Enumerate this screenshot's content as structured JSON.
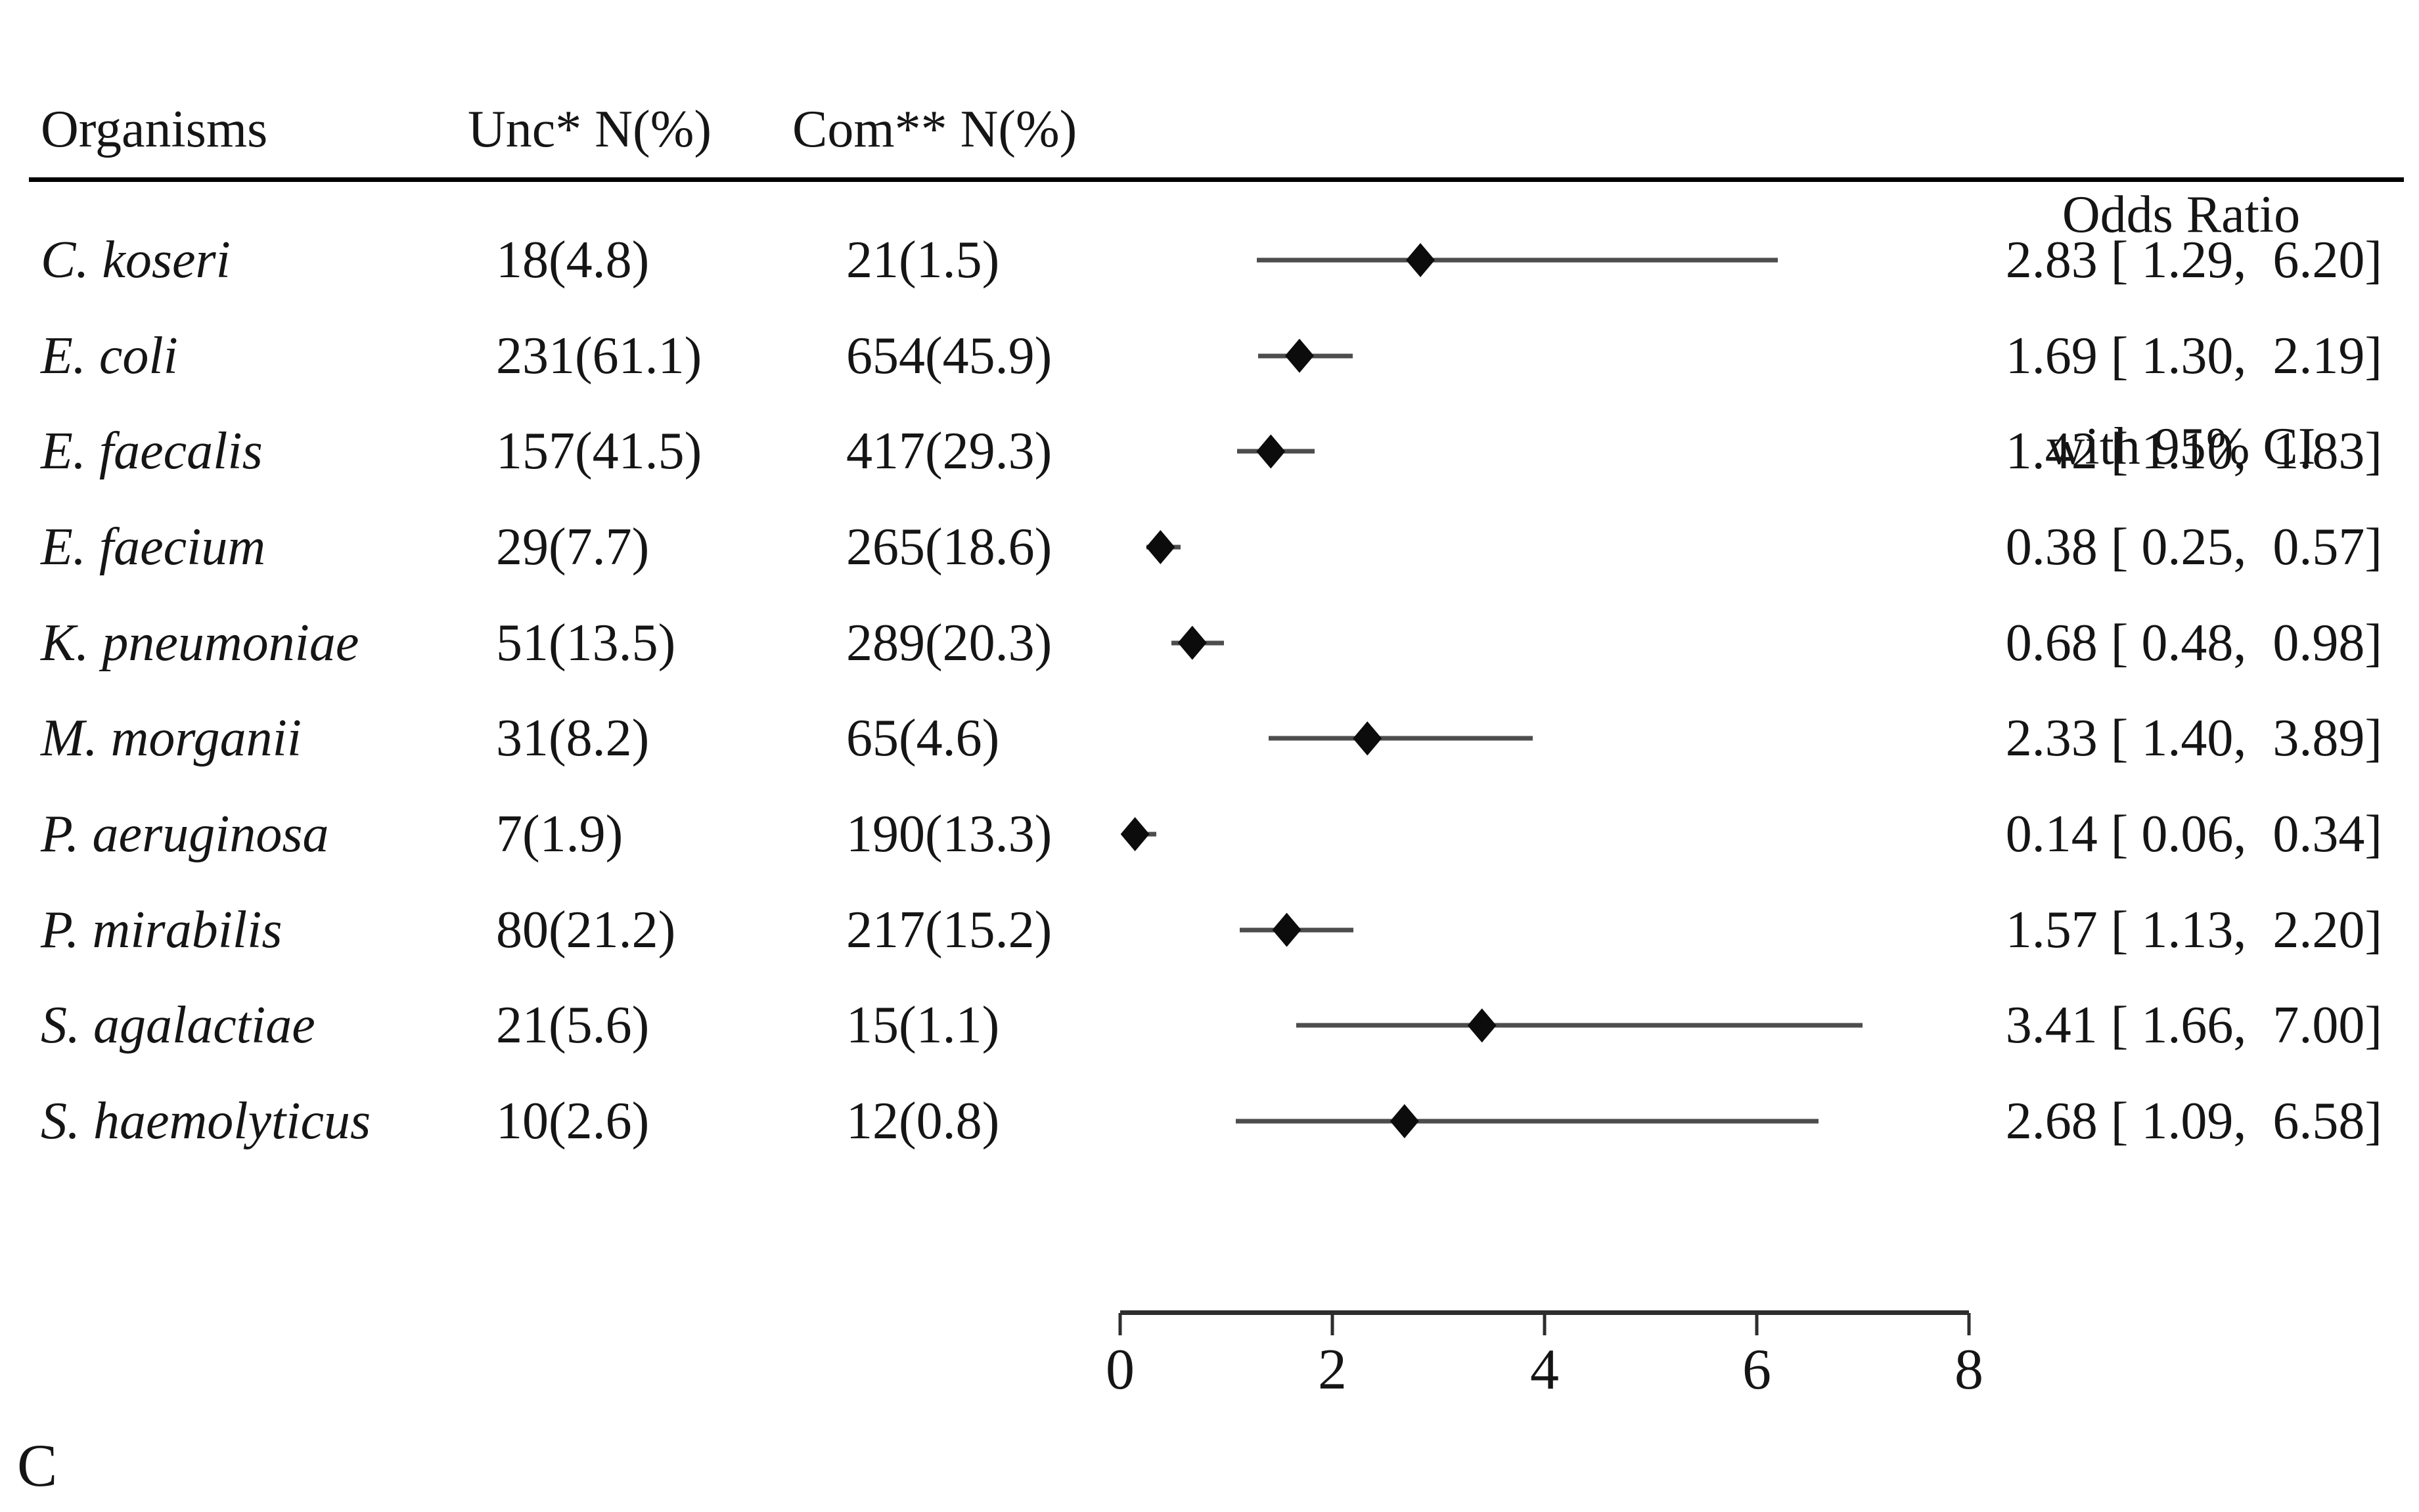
{
  "figure": {
    "panel_label": "C",
    "headers": {
      "organisms": "Organisms",
      "unc": "Unc* N(%)",
      "com": "Com** N(%)",
      "or_line1": "Odds Ratio",
      "or_line2": "with 95% CI"
    }
  },
  "chart_data": {
    "type": "scatter",
    "variant": "forest_plot",
    "title": "Odds Ratio with 95% CI",
    "xlabel": "",
    "ylabel": "",
    "axis": {
      "min": 0,
      "max": 8,
      "ticks": [
        0,
        2,
        4,
        6,
        8
      ]
    },
    "columns": [
      "Organisms",
      "Unc* N(%)",
      "Com** N(%)",
      "Odds Ratio with 95% CI"
    ],
    "rows": [
      {
        "organism": "C. koseri",
        "unc": "18(4.8)",
        "com": "21(1.5)",
        "or": 2.83,
        "ci_low": 1.29,
        "ci_high": 6.2,
        "or_label": "2.83 [ 1.29,  6.20]"
      },
      {
        "organism": "E. coli",
        "unc": "231(61.1)",
        "com": "654(45.9)",
        "or": 1.69,
        "ci_low": 1.3,
        "ci_high": 2.19,
        "or_label": "1.69 [ 1.30,  2.19]"
      },
      {
        "organism": "E. faecalis",
        "unc": "157(41.5)",
        "com": "417(29.3)",
        "or": 1.42,
        "ci_low": 1.1,
        "ci_high": 1.83,
        "or_label": "1.42 [ 1.10,  1.83]"
      },
      {
        "organism": "E. faecium",
        "unc": "29(7.7)",
        "com": "265(18.6)",
        "or": 0.38,
        "ci_low": 0.25,
        "ci_high": 0.57,
        "or_label": "0.38 [ 0.25,  0.57]"
      },
      {
        "organism": "K. pneumoniae",
        "unc": "51(13.5)",
        "com": "289(20.3)",
        "or": 0.68,
        "ci_low": 0.48,
        "ci_high": 0.98,
        "or_label": "0.68 [ 0.48,  0.98]"
      },
      {
        "organism": "M. morganii",
        "unc": "31(8.2)",
        "com": "65(4.6)",
        "or": 2.33,
        "ci_low": 1.4,
        "ci_high": 3.89,
        "or_label": "2.33 [ 1.40,  3.89]"
      },
      {
        "organism": "P. aeruginosa",
        "unc": "7(1.9)",
        "com": "190(13.3)",
        "or": 0.14,
        "ci_low": 0.06,
        "ci_high": 0.34,
        "or_label": "0.14 [ 0.06,  0.34]"
      },
      {
        "organism": "P. mirabilis",
        "unc": "80(21.2)",
        "com": "217(15.2)",
        "or": 1.57,
        "ci_low": 1.13,
        "ci_high": 2.2,
        "or_label": "1.57 [ 1.13,  2.20]"
      },
      {
        "organism": "S. agalactiae",
        "unc": "21(5.6)",
        "com": "15(1.1)",
        "or": 3.41,
        "ci_low": 1.66,
        "ci_high": 7.0,
        "or_label": "3.41 [ 1.66,  7.00]"
      },
      {
        "organism": "S. haemolyticus",
        "unc": "10(2.6)",
        "com": "12(0.8)",
        "or": 2.68,
        "ci_low": 1.09,
        "ci_high": 6.58,
        "or_label": "2.68 [ 1.09,  6.58]"
      }
    ],
    "legend": null,
    "grid": false
  },
  "colors": {
    "background": "#ffffff",
    "text": "#151515",
    "rule": "#000000",
    "ci_line": "#4d4d4d",
    "marker": "#0c0c0c",
    "axis": "#2e2e2e"
  }
}
